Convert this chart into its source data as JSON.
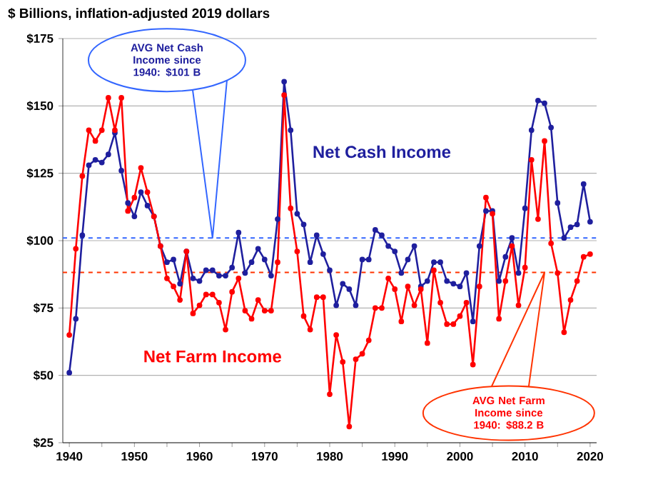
{
  "chart_data": {
    "type": "line",
    "ylabel": "$ Billions, inflation-adjusted 2019 dollars",
    "x": [
      1940,
      1941,
      1942,
      1943,
      1944,
      1945,
      1946,
      1947,
      1948,
      1949,
      1950,
      1951,
      1952,
      1953,
      1954,
      1955,
      1956,
      1957,
      1958,
      1959,
      1960,
      1961,
      1962,
      1963,
      1964,
      1965,
      1966,
      1967,
      1968,
      1969,
      1970,
      1971,
      1972,
      1973,
      1974,
      1975,
      1976,
      1977,
      1978,
      1979,
      1980,
      1981,
      1982,
      1983,
      1984,
      1985,
      1986,
      1987,
      1988,
      1989,
      1990,
      1991,
      1992,
      1993,
      1994,
      1995,
      1996,
      1997,
      1998,
      1999,
      2000,
      2001,
      2002,
      2003,
      2004,
      2005,
      2006,
      2007,
      2008,
      2009,
      2010,
      2011,
      2012,
      2013,
      2014,
      2015,
      2016,
      2017,
      2018,
      2019,
      2020
    ],
    "series": [
      {
        "name": "Net Cash Income",
        "color": "#1f1f9e",
        "values": [
          51,
          71,
          102,
          128,
          130,
          129,
          132,
          140,
          126,
          114,
          109,
          118,
          113,
          109,
          98,
          92,
          93,
          84,
          96,
          86,
          85,
          89,
          89,
          87,
          87,
          90,
          103,
          88,
          92,
          97,
          93,
          87,
          108,
          159,
          141,
          110,
          106,
          92,
          102,
          95,
          89,
          76,
          84,
          82,
          76,
          93,
          93,
          104,
          102,
          98,
          96,
          88,
          93,
          98,
          83,
          85,
          92,
          92,
          85,
          84,
          83,
          88,
          70,
          98,
          111,
          111,
          85,
          94,
          101,
          88,
          112,
          141,
          152,
          151,
          142,
          114,
          101,
          105,
          106,
          121,
          107
        ]
      },
      {
        "name": "Net Farm Income",
        "color": "#ff0000",
        "values": [
          65,
          97,
          124,
          141,
          137,
          141,
          153,
          141,
          153,
          111,
          116,
          127,
          118,
          109,
          98,
          86,
          83,
          78,
          96,
          73,
          76,
          80,
          80,
          77,
          67,
          81,
          86,
          74,
          71,
          78,
          74,
          74,
          92,
          154,
          112,
          96,
          72,
          67,
          79,
          79,
          43,
          65,
          55,
          31,
          56,
          58,
          63,
          75,
          75,
          86,
          82,
          70,
          83,
          76,
          82,
          62,
          89,
          77,
          69,
          69,
          72,
          77,
          54,
          83,
          116,
          110,
          71,
          85,
          98,
          76,
          90,
          130,
          108,
          137,
          99,
          88,
          66,
          78,
          85,
          94,
          95
        ]
      }
    ],
    "xlim": [
      1939,
      2021
    ],
    "ylim": [
      25,
      175
    ],
    "xticks": [
      1940,
      {
        "value": 1945,
        "label": null
      },
      1950,
      {
        "value": 1955,
        "label": null
      },
      1960,
      {
        "value": 1965,
        "label": null
      },
      1970,
      {
        "value": 1975,
        "label": null
      },
      1980,
      {
        "value": 1985,
        "label": null
      },
      1990,
      {
        "value": 1995,
        "label": null
      },
      2000,
      {
        "value": 2005,
        "label": null
      },
      2010,
      {
        "value": 2015,
        "label": null
      },
      2020
    ],
    "yticks": [
      {
        "value": 25,
        "label": "$25"
      },
      {
        "value": 50,
        "label": "$50"
      },
      {
        "value": 75,
        "label": "$75"
      },
      {
        "value": 100,
        "label": "$100"
      },
      {
        "value": 125,
        "label": "$125"
      },
      {
        "value": 150,
        "label": "$150"
      },
      {
        "value": 175,
        "label": "$175"
      }
    ],
    "ref_lines": [
      {
        "axis": "y",
        "value": 101,
        "color": "#3366ff",
        "line_style": "dashed"
      },
      {
        "axis": "y",
        "value": 88.2,
        "color": "#ff3300",
        "line_style": "dashed"
      }
    ],
    "annotations": [
      "AVG Net Cash Income since 1940: $101 B",
      "AVG Net Farm Income since 1940: $88.2 B"
    ],
    "grid": "y",
    "marker": "circle",
    "line_style": "solid"
  }
}
